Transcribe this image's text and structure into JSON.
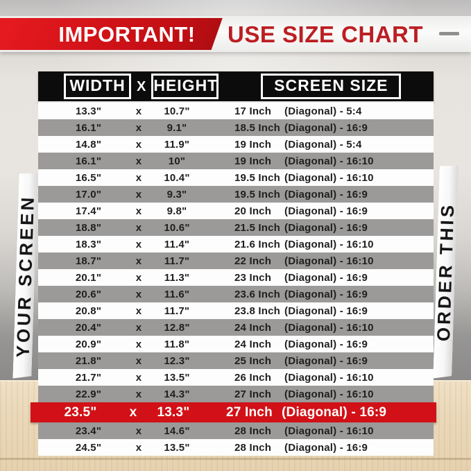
{
  "top_banner": {
    "important_label": "IMPORTANT!",
    "headline": "USE SIZE CHART",
    "ribbon_color": "#d01319",
    "headline_color": "#bc1e23",
    "dash_color": "#8f8f8f"
  },
  "side_banners": {
    "left_label": "YOUR SCREEN",
    "right_label": "ORDER THIS"
  },
  "size_table": {
    "header": {
      "width_label": "WIDTH",
      "x_label": "X",
      "height_label": "HEIGHT",
      "screen_size_label": "SCREEN SIZE"
    },
    "colors": {
      "header_bg": "#0c0c0c",
      "stripe_gray": "#9b9a99",
      "row_white": "#fdfdfd",
      "highlight_red": "#d11117"
    },
    "rows": [
      {
        "width": "13.3\"",
        "x": "x",
        "height": "10.7\"",
        "inch": "17 Inch",
        "diag": "(Diagonal) - 5:4",
        "variant": "white"
      },
      {
        "width": "16.1\"",
        "x": "x",
        "height": "9.1\"",
        "inch": "18.5 Inch",
        "diag": "(Diagonal) - 16:9",
        "variant": "gray"
      },
      {
        "width": "14.8\"",
        "x": "x",
        "height": "11.9\"",
        "inch": "19 Inch",
        "diag": "(Diagonal) - 5:4",
        "variant": "white"
      },
      {
        "width": "16.1\"",
        "x": "x",
        "height": "10\"",
        "inch": "19 Inch",
        "diag": "(Diagonal) - 16:10",
        "variant": "gray"
      },
      {
        "width": "16.5\"",
        "x": "x",
        "height": "10.4\"",
        "inch": "19.5 Inch",
        "diag": "(Diagonal) - 16:10",
        "variant": "white"
      },
      {
        "width": "17.0\"",
        "x": "x",
        "height": "9.3\"",
        "inch": "19.5 Inch",
        "diag": "(Diagonal) - 16:9",
        "variant": "gray"
      },
      {
        "width": "17.4\"",
        "x": "x",
        "height": "9.8\"",
        "inch": "20 Inch",
        "diag": "(Diagonal) - 16:9",
        "variant": "white"
      },
      {
        "width": "18.8\"",
        "x": "x",
        "height": "10.6\"",
        "inch": "21.5 Inch",
        "diag": "(Diagonal) - 16:9",
        "variant": "gray"
      },
      {
        "width": "18.3\"",
        "x": "x",
        "height": "11.4\"",
        "inch": "21.6 Inch",
        "diag": "(Diagonal) - 16:10",
        "variant": "white"
      },
      {
        "width": "18.7\"",
        "x": "x",
        "height": "11.7\"",
        "inch": "22 Inch",
        "diag": "(Diagonal) - 16:10",
        "variant": "gray"
      },
      {
        "width": "20.1\"",
        "x": "x",
        "height": "11.3\"",
        "inch": "23 Inch",
        "diag": "(Diagonal) - 16:9",
        "variant": "white"
      },
      {
        "width": "20.6\"",
        "x": "x",
        "height": "11.6\"",
        "inch": "23.6 Inch",
        "diag": "(Diagonal) - 16:9",
        "variant": "gray"
      },
      {
        "width": "20.8\"",
        "x": "x",
        "height": "11.7\"",
        "inch": "23.8 Inch",
        "diag": "(Diagonal) - 16:9",
        "variant": "white"
      },
      {
        "width": "20.4\"",
        "x": "x",
        "height": "12.8\"",
        "inch": "24 Inch",
        "diag": "(Diagonal) - 16:10",
        "variant": "gray"
      },
      {
        "width": "20.9\"",
        "x": "x",
        "height": "11.8\"",
        "inch": "24 Inch",
        "diag": "(Diagonal) - 16:9",
        "variant": "white"
      },
      {
        "width": "21.8\"",
        "x": "x",
        "height": "12.3\"",
        "inch": "25 Inch",
        "diag": "(Diagonal) - 16:9",
        "variant": "gray"
      },
      {
        "width": "21.7\"",
        "x": "x",
        "height": "13.5\"",
        "inch": "26 Inch",
        "diag": "(Diagonal) - 16:10",
        "variant": "white"
      },
      {
        "width": "22.9\"",
        "x": "x",
        "height": "14.3\"",
        "inch": "27 Inch",
        "diag": "(Diagonal) - 16:10",
        "variant": "gray"
      },
      {
        "width": "23.5\"",
        "x": "x",
        "height": "13.3\"",
        "inch": "27 Inch",
        "diag": "(Diagonal) - 16:9",
        "variant": "highlight"
      },
      {
        "width": "23.4\"",
        "x": "x",
        "height": "14.6\"",
        "inch": "28 Inch",
        "diag": "(Diagonal) - 16:10",
        "variant": "gray"
      },
      {
        "width": "24.5\"",
        "x": "x",
        "height": "13.5\"",
        "inch": "28 Inch",
        "diag": "(Diagonal) - 16:9",
        "variant": "white"
      }
    ]
  },
  "chart_data": {
    "type": "table",
    "title": "USE SIZE CHART",
    "columns": [
      "WIDTH",
      "HEIGHT",
      "SCREEN SIZE"
    ],
    "rows": [
      [
        "13.3\"",
        "10.7\"",
        "17 Inch (Diagonal) - 5:4"
      ],
      [
        "16.1\"",
        "9.1\"",
        "18.5 Inch (Diagonal) - 16:9"
      ],
      [
        "14.8\"",
        "11.9\"",
        "19 Inch (Diagonal) - 5:4"
      ],
      [
        "16.1\"",
        "10\"",
        "19 Inch (Diagonal) - 16:10"
      ],
      [
        "16.5\"",
        "10.4\"",
        "19.5 Inch (Diagonal) - 16:10"
      ],
      [
        "17.0\"",
        "9.3\"",
        "19.5 Inch (Diagonal) - 16:9"
      ],
      [
        "17.4\"",
        "9.8\"",
        "20 Inch (Diagonal) - 16:9"
      ],
      [
        "18.8\"",
        "10.6\"",
        "21.5 Inch (Diagonal) - 16:9"
      ],
      [
        "18.3\"",
        "11.4\"",
        "21.6 Inch (Diagonal) - 16:10"
      ],
      [
        "18.7\"",
        "11.7\"",
        "22 Inch (Diagonal) - 16:10"
      ],
      [
        "20.1\"",
        "11.3\"",
        "23 Inch (Diagonal) - 16:9"
      ],
      [
        "20.6\"",
        "11.6\"",
        "23.6 Inch (Diagonal) - 16:9"
      ],
      [
        "20.8\"",
        "11.7\"",
        "23.8 Inch (Diagonal) - 16:9"
      ],
      [
        "20.4\"",
        "12.8\"",
        "24 Inch (Diagonal) - 16:10"
      ],
      [
        "20.9\"",
        "11.8\"",
        "24 Inch (Diagonal) - 16:9"
      ],
      [
        "21.8\"",
        "12.3\"",
        "25 Inch (Diagonal) - 16:9"
      ],
      [
        "21.7\"",
        "13.5\"",
        "26 Inch (Diagonal) - 16:10"
      ],
      [
        "22.9\"",
        "14.3\"",
        "27 Inch (Diagonal) - 16:10"
      ],
      [
        "23.5\"",
        "13.3\"",
        "27 Inch (Diagonal) - 16:9"
      ],
      [
        "23.4\"",
        "14.6\"",
        "28 Inch (Diagonal) - 16:10"
      ],
      [
        "24.5\"",
        "13.5\"",
        "28 Inch (Diagonal) - 16:9"
      ]
    ],
    "highlighted_row_index": 18,
    "legend_left": "YOUR SCREEN",
    "legend_right": "ORDER THIS"
  }
}
